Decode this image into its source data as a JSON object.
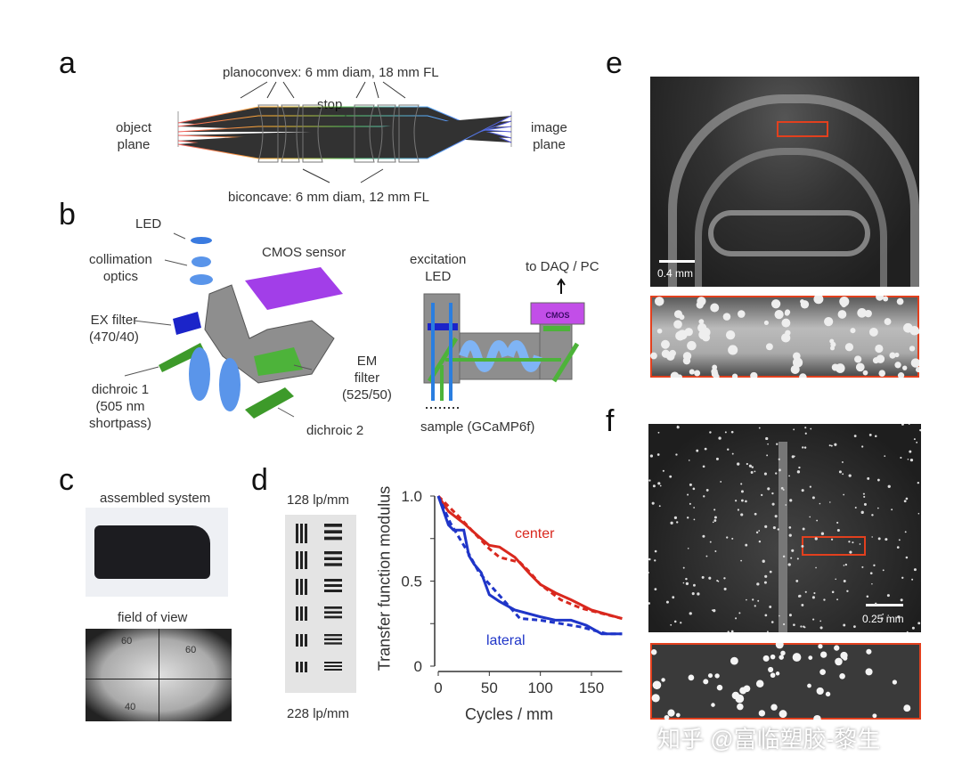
{
  "panels": {
    "a": {
      "label": "a",
      "planoconvex": "planoconvex: 6 mm diam, 18 mm FL",
      "stop": "stop",
      "object_plane": "object\nplane",
      "image_plane": "image\nplane",
      "biconcave": "biconcave: 6 mm diam, 12 mm FL"
    },
    "b": {
      "label": "b",
      "led": "LED",
      "collimation": "collimation\noptics",
      "cmos_sensor": "CMOS sensor",
      "ex_filter": "EX filter\n(470/40)",
      "dichroic1": "dichroic 1\n(505 nm\nshortpass)",
      "em_filter": "EM\nfilter\n(525/50)",
      "dichroic2": "dichroic 2",
      "excitation_led": "excitation\nLED",
      "to_daq": "to DAQ / PC",
      "cmos": "CMOS",
      "sample": "sample (GCaMP6f)"
    },
    "c": {
      "label": "c",
      "assembled": "assembled system",
      "fov": "field of view",
      "ruler_60a": "60",
      "ruler_60b": "60",
      "ruler_40": "40"
    },
    "d": {
      "label": "d",
      "top_lp": "128 lp/mm",
      "bottom_lp": "228 lp/mm"
    },
    "e": {
      "label": "e",
      "scale": "0.4 mm"
    },
    "f": {
      "label": "f",
      "scale": "0.25 mm"
    }
  },
  "watermark": "知乎 @富临塑胶-黎生",
  "colors": {
    "center": "#d9281e",
    "lateral": "#1f35c8",
    "inset_box": "#e2401e"
  },
  "chart_data": {
    "type": "line",
    "xlabel": "Cycles / mm",
    "ylabel": "Transfer function modulus",
    "xlim": [
      0,
      180
    ],
    "ylim": [
      0,
      1.0
    ],
    "xticks": [
      "0",
      "50",
      "100",
      "150"
    ],
    "yticks": [
      "0",
      "0.5",
      "1.0"
    ],
    "grid": false,
    "annotations": [
      "center",
      "lateral"
    ],
    "series": [
      {
        "name": "center",
        "style": "solid",
        "color": "#d9281e",
        "x": [
          0,
          10,
          25,
          40,
          50,
          60,
          75,
          90,
          100,
          115,
          130,
          150,
          180
        ],
        "y": [
          1.0,
          0.91,
          0.84,
          0.76,
          0.71,
          0.7,
          0.64,
          0.54,
          0.48,
          0.43,
          0.39,
          0.33,
          0.28
        ]
      },
      {
        "name": "center",
        "style": "dashed",
        "color": "#d9281e",
        "x": [
          0,
          20,
          50,
          60,
          80,
          90,
          100,
          120,
          140,
          160,
          180
        ],
        "y": [
          1.0,
          0.88,
          0.69,
          0.64,
          0.61,
          0.55,
          0.48,
          0.39,
          0.34,
          0.31,
          0.28
        ]
      },
      {
        "name": "lateral",
        "style": "solid",
        "color": "#1f35c8",
        "x": [
          0,
          10,
          15,
          25,
          30,
          35,
          42,
          50,
          60,
          75,
          100,
          115,
          130,
          145,
          160,
          180
        ],
        "y": [
          1.0,
          0.83,
          0.8,
          0.8,
          0.65,
          0.6,
          0.55,
          0.42,
          0.38,
          0.33,
          0.29,
          0.27,
          0.27,
          0.24,
          0.19,
          0.19
        ]
      },
      {
        "name": "lateral",
        "style": "dashed",
        "color": "#1f35c8",
        "x": [
          0,
          12,
          30,
          40,
          80,
          100,
          140,
          165,
          180
        ],
        "y": [
          1.0,
          0.84,
          0.66,
          0.55,
          0.28,
          0.27,
          0.23,
          0.19,
          0.19
        ]
      }
    ]
  }
}
